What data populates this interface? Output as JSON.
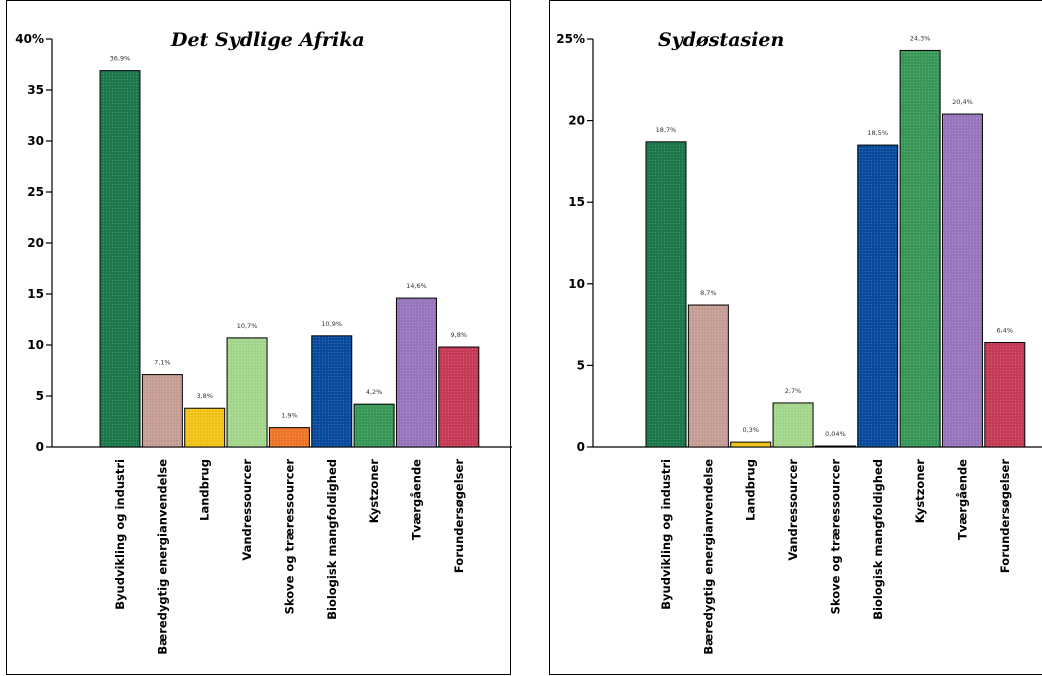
{
  "chart_data": [
    {
      "type": "bar",
      "title": "Det Sydlige Afrika",
      "xlabel": "",
      "ylabel": "",
      "ylim": [
        0,
        40
      ],
      "yticks": [
        0,
        5,
        10,
        15,
        20,
        25,
        30,
        35,
        40
      ],
      "ytick_labels": [
        "0",
        "5",
        "10",
        "15",
        "20",
        "25",
        "30",
        "35",
        "40%"
      ],
      "categories": [
        "Byudvikling og industri",
        "Bæredygtig energianvendelse",
        "Landbrug",
        "Vandressourcer",
        "Skove og træressourcer",
        "Biologisk mangfoldighed",
        "Kystzoner",
        "Tværgående",
        "Forundersøgelser"
      ],
      "values": [
        36.9,
        7.1,
        3.8,
        10.7,
        1.9,
        10.9,
        4.2,
        14.6,
        9.8
      ],
      "data_labels": [
        "36,9%",
        "7,1%",
        "3,8%",
        "10,7%",
        "1,9%",
        "10,9%",
        "4,2%",
        "14,6%",
        "9,8%"
      ],
      "colors": [
        "#1e7a4c",
        "#c8a098",
        "#f5c518",
        "#a6d88e",
        "#f07828",
        "#0a4ca0",
        "#3a9a5a",
        "#9a78c0",
        "#c83c58"
      ],
      "grid": false
    },
    {
      "type": "bar",
      "title": "Sydøstasien",
      "xlabel": "",
      "ylabel": "",
      "ylim": [
        0,
        25
      ],
      "yticks": [
        0,
        5,
        10,
        15,
        20,
        25
      ],
      "ytick_labels": [
        "0",
        "5",
        "10",
        "15",
        "20",
        "25%"
      ],
      "categories": [
        "Byudvikling og industri",
        "Bæredygtig energianvendelse",
        "Landbrug",
        "Vandressourcer",
        "Skove og træressourcer",
        "Biologisk mangfoldighed",
        "Kystzoner",
        "Tværgående",
        "Forundersøgelser"
      ],
      "values": [
        18.7,
        8.7,
        0.3,
        2.7,
        0.04,
        18.5,
        24.3,
        20.4,
        6.4
      ],
      "data_labels": [
        "18,7%",
        "8,7%",
        "0,3%",
        "2,7%",
        "0,04%",
        "18,5%",
        "24,3%",
        "20,4%",
        "6,4%"
      ],
      "colors": [
        "#1e7a4c",
        "#c8a098",
        "#f5c518",
        "#a6d88e",
        "#f07828",
        "#0a4ca0",
        "#3a9a5a",
        "#9a78c0",
        "#c83c58"
      ],
      "grid": false
    }
  ]
}
